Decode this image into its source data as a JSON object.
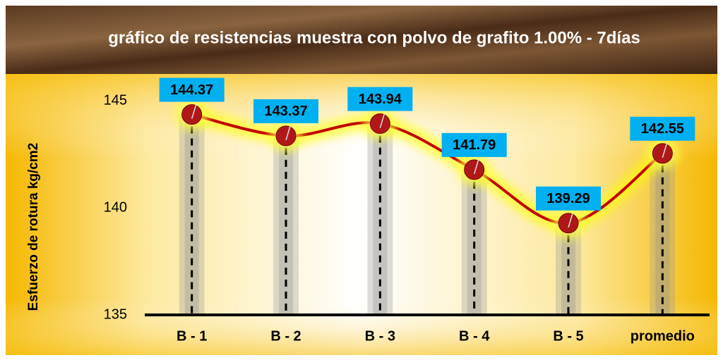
{
  "chart_data": {
    "type": "line",
    "title": "gráfico de resistencias muestra con polvo de grafito 1.00% - 7días",
    "y_label": "Esfuerzo de rotura kg/cm2",
    "categories": [
      "B - 1",
      "B - 2",
      "B - 3",
      "B - 4",
      "B - 5",
      "promedio"
    ],
    "values": [
      144.37,
      143.37,
      143.94,
      141.79,
      139.29,
      142.55
    ],
    "color": "#c00000",
    "ylim": [
      135,
      146
    ],
    "yticks": [
      135,
      140,
      145
    ]
  }
}
